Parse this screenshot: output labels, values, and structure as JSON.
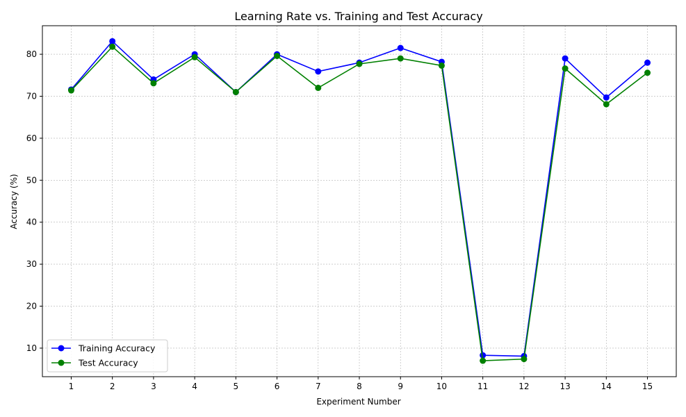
{
  "chart_data": {
    "type": "line",
    "title": "Learning Rate vs. Training and Test Accuracy",
    "xlabel": "Experiment Number",
    "ylabel": "Accuracy (%)",
    "x": [
      1,
      2,
      3,
      4,
      5,
      6,
      7,
      8,
      9,
      10,
      11,
      12,
      13,
      14,
      15
    ],
    "xlim": [
      0.3,
      15.7
    ],
    "ylim": [
      3.2,
      86.8
    ],
    "yticks": [
      10,
      20,
      30,
      40,
      50,
      60,
      70,
      80
    ],
    "grid": true,
    "legend_position": "lower-left",
    "series": [
      {
        "name": "Training Accuracy",
        "color": "#0000ff",
        "marker": "circle",
        "values": [
          71.6,
          83.1,
          74.0,
          80.0,
          71.0,
          80.0,
          75.9,
          78.0,
          81.5,
          78.2,
          8.3,
          8.1,
          79.0,
          69.7,
          78.0
        ]
      },
      {
        "name": "Test Accuracy",
        "color": "#008000",
        "marker": "circle",
        "values": [
          71.4,
          81.8,
          73.1,
          79.3,
          71.0,
          79.6,
          72.0,
          77.7,
          79.0,
          77.3,
          7.0,
          7.4,
          76.6,
          68.1,
          75.6
        ]
      }
    ]
  }
}
